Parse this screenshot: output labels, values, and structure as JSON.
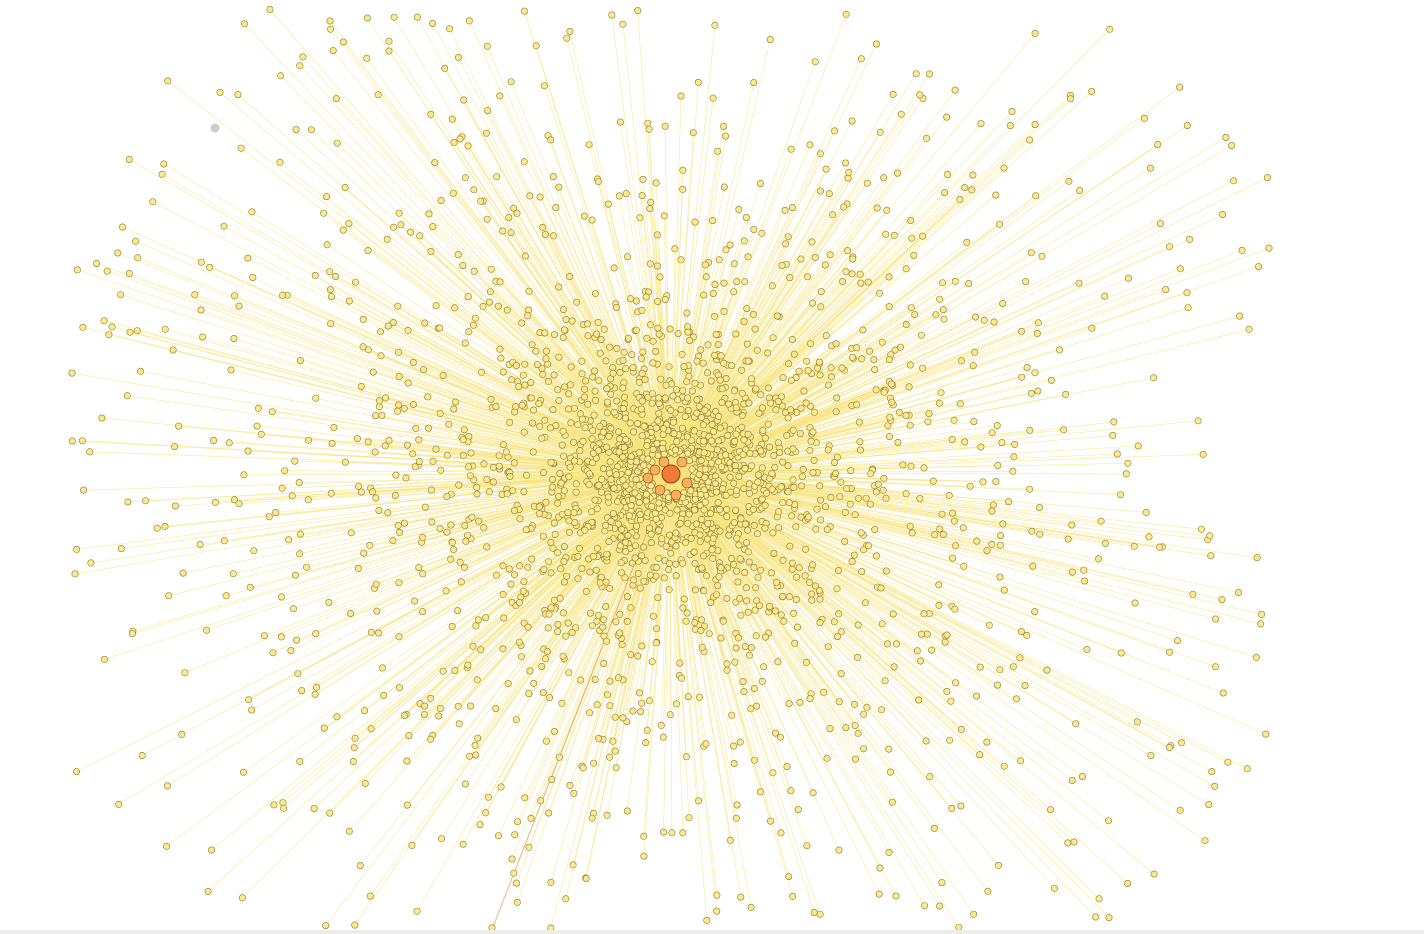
{
  "graph": {
    "layout": "radial-star",
    "hub_count": 1,
    "leaf_node_estimate": 4000,
    "colors": {
      "background": "#ffffff",
      "edge": "#f7e47a",
      "node_fill": "#fce98a",
      "node_stroke": "#8a7a3a",
      "hub_fill": "#f07a3a",
      "hub_stroke": "#9a3a10",
      "isolated_node": "#cccccc",
      "highlight_edge": "#d9534f"
    }
  }
}
